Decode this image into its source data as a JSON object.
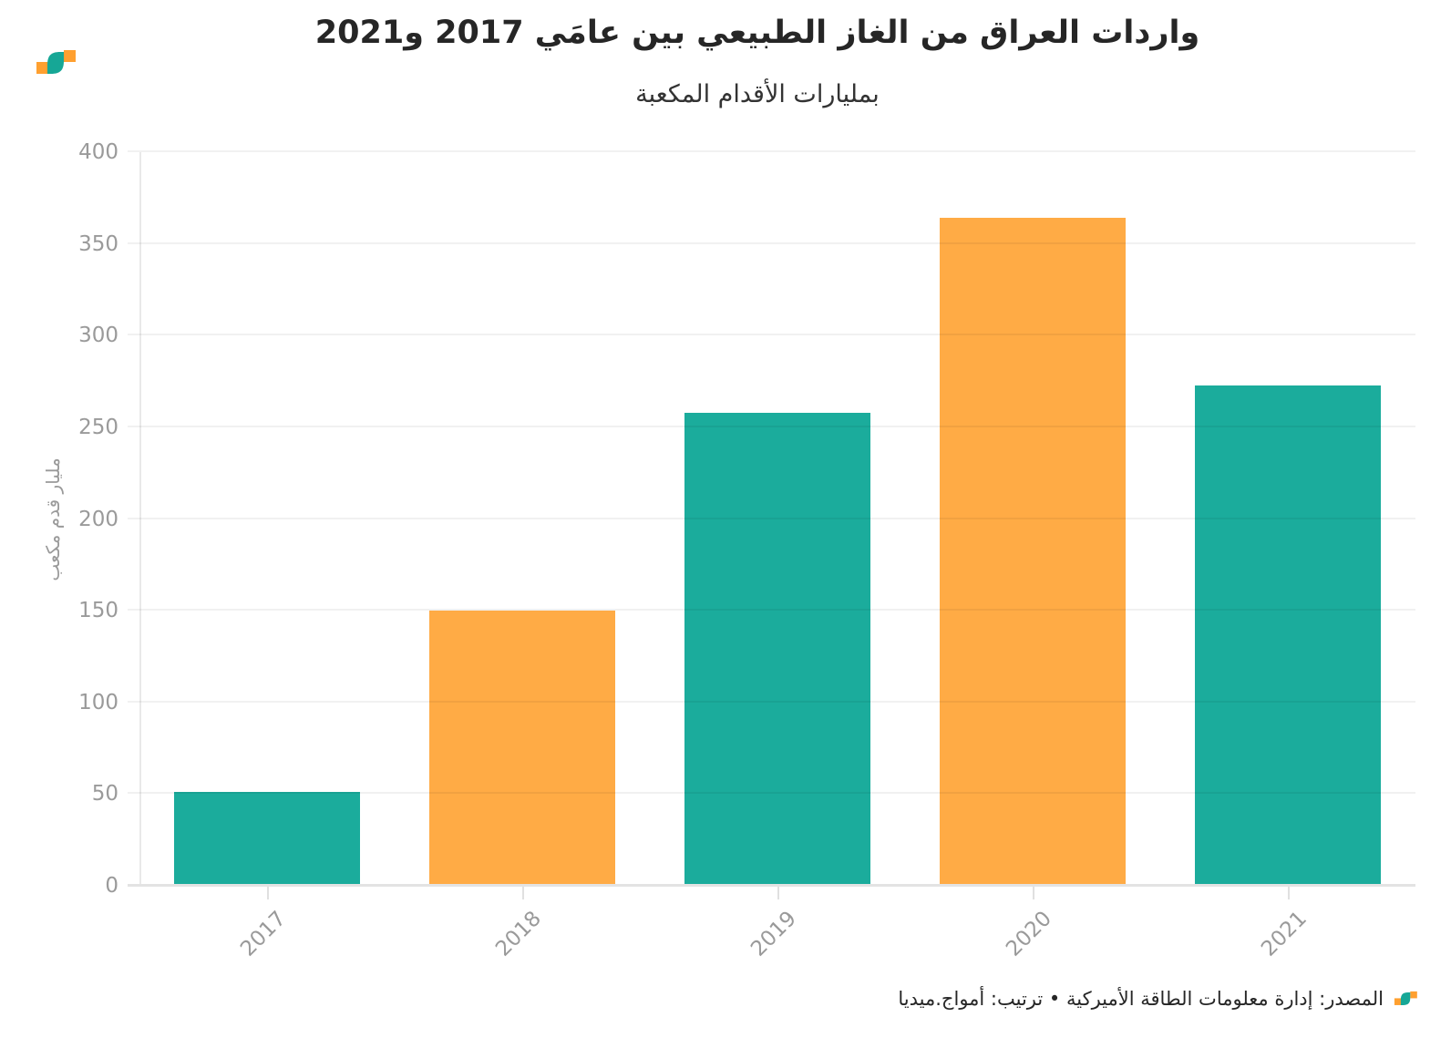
{
  "header": {
    "title": "واردات العراق من الغاز الطبيعي بين عامَي 2017 و2021",
    "subtitle": "بمليارات الأقدام المكعبة"
  },
  "colors": {
    "teal": "#1BAC9C",
    "orange": "#FFAB45",
    "grid": "#ececec",
    "axis": "#e3e3e3",
    "tick_label": "#9a9a9a",
    "title_text": "#262626"
  },
  "chart_data": {
    "type": "bar",
    "title": "واردات العراق من الغاز الطبيعي بين عامَي 2017 و2021",
    "subtitle": "بمليارات الأقدام المكعبة",
    "categories": [
      "2017",
      "2018",
      "2019",
      "2020",
      "2021"
    ],
    "values": [
      51,
      150,
      258,
      364,
      273
    ],
    "bar_colors": [
      "#1BAC9C",
      "#FFAB45",
      "#1BAC9C",
      "#FFAB45",
      "#1BAC9C"
    ],
    "xlabel": "",
    "ylabel": "مليار قدم مكعب",
    "ylim": [
      0,
      400
    ],
    "yticks": [
      0,
      50,
      100,
      150,
      200,
      250,
      300,
      350,
      400
    ],
    "grid": "horizontal",
    "x_tick_rotation": -45,
    "legend": "none"
  },
  "footer": {
    "source": "المصدر: إدارة معلومات الطاقة الأميركية • ترتيب: أمواج.ميديا"
  }
}
